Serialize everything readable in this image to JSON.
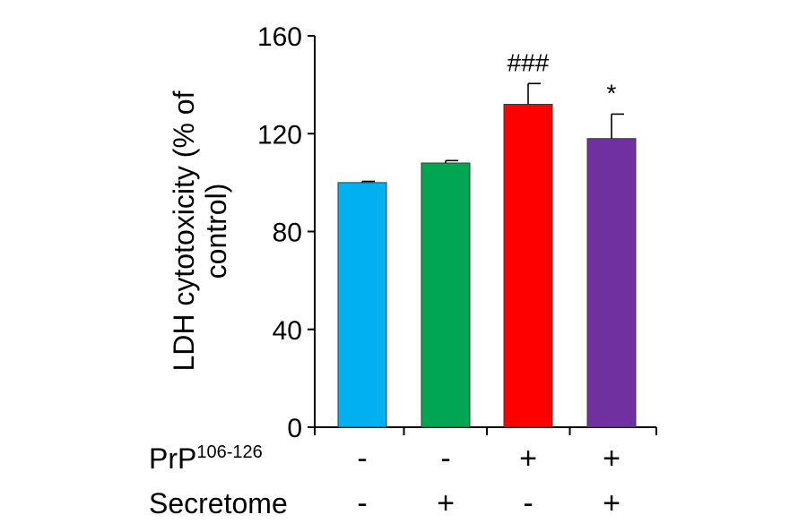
{
  "chart_data": {
    "type": "bar",
    "ylabel_lines": [
      "LDH cytotoxicity (% of",
      "control)"
    ],
    "ylim": [
      0,
      160
    ],
    "yticks": [
      0,
      40,
      80,
      120,
      160
    ],
    "series": [
      {
        "values": [
          100,
          108,
          132,
          118
        ],
        "errors": [
          0.5,
          1,
          8.5,
          10
        ],
        "colors": [
          "#00B0F0",
          "#00A651",
          "#FF0000",
          "#7030A0"
        ]
      }
    ],
    "annotations": [
      "",
      "",
      "###",
      "*"
    ],
    "conditions": [
      {
        "label": "PrP",
        "label_sup": "106-126",
        "signs": [
          "-",
          "-",
          "+",
          "+"
        ]
      },
      {
        "label": "Secretome",
        "label_sup": "",
        "signs": [
          "-",
          "+",
          "-",
          "+"
        ]
      }
    ]
  }
}
